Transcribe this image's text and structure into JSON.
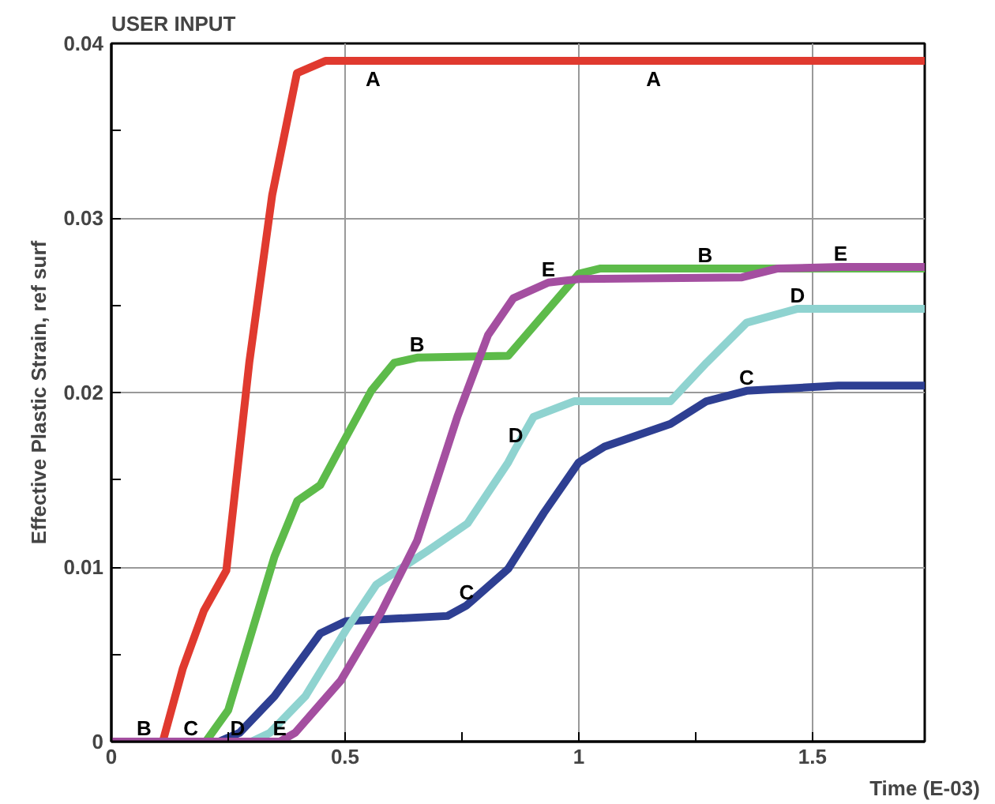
{
  "chart_data": {
    "type": "line",
    "title": "USER INPUT",
    "xlabel": "Time (E-03)",
    "ylabel": "Effective Plastic Strain, ref surf",
    "xlim": [
      0,
      1.74
    ],
    "ylim": [
      0,
      0.04
    ],
    "xticks": [
      0,
      {
        "value": 0.25,
        "label": null
      },
      0.5,
      {
        "value": 0.75,
        "label": null
      },
      1,
      {
        "value": 1.25,
        "label": null
      },
      1.5
    ],
    "yticks": [
      0,
      {
        "value": 0.005,
        "label": null
      },
      0.01,
      {
        "value": 0.015,
        "label": null
      },
      0.02,
      {
        "value": 0.025,
        "label": null
      },
      0.03,
      {
        "value": 0.035,
        "label": null
      },
      0.04
    ],
    "grid": true,
    "line_style": "solid",
    "series": [
      {
        "name": "A",
        "color": "#e03a2f",
        "x": [
          0,
          0.045,
          0.11,
          0.153,
          0.198,
          0.246,
          0.295,
          0.344,
          0.397,
          0.458,
          0.56,
          1.16,
          1.74
        ],
        "values": [
          0,
          0,
          0,
          0.0042,
          0.0075,
          0.0098,
          0.0217,
          0.0313,
          0.0383,
          0.039,
          0.039,
          0.039,
          0.039
        ]
      },
      {
        "name": "B",
        "color": "#5dbb4a",
        "x": [
          0,
          0.07,
          0.202,
          0.25,
          0.295,
          0.349,
          0.398,
          0.447,
          0.491,
          0.556,
          0.605,
          0.654,
          0.849,
          1.0,
          1.045,
          1.27,
          1.74
        ],
        "values": [
          0,
          0,
          0,
          0.0018,
          0.0058,
          0.0106,
          0.0138,
          0.0147,
          0.0169,
          0.0201,
          0.0217,
          0.022,
          0.0221,
          0.0268,
          0.0271,
          0.0271,
          0.0271
        ]
      },
      {
        "name": "C",
        "color": "#2e3f92",
        "x": [
          0,
          0.17,
          0.23,
          0.274,
          0.349,
          0.447,
          0.502,
          0.719,
          0.76,
          0.849,
          0.925,
          1.0,
          1.055,
          1.196,
          1.273,
          1.359,
          1.555,
          1.74
        ],
        "values": [
          0,
          0,
          0,
          0.0005,
          0.0026,
          0.0062,
          0.0069,
          0.0072,
          0.0078,
          0.0099,
          0.0131,
          0.016,
          0.0169,
          0.0182,
          0.0195,
          0.0201,
          0.0204,
          0.0204
        ]
      },
      {
        "name": "D",
        "color": "#8fd3d0",
        "x": [
          0,
          0.27,
          0.3,
          0.339,
          0.415,
          0.502,
          0.567,
          0.675,
          0.762,
          0.849,
          0.865,
          0.903,
          0.99,
          1.196,
          1.273,
          1.359,
          1.468,
          1.74
        ],
        "values": [
          0,
          0,
          0,
          0.0005,
          0.0026,
          0.0064,
          0.009,
          0.0109,
          0.0125,
          0.016,
          0.0168,
          0.0186,
          0.0195,
          0.0195,
          0.0217,
          0.024,
          0.0248,
          0.0248
        ]
      },
      {
        "name": "E",
        "color": "#a44fa0",
        "x": [
          0,
          0.36,
          0.393,
          0.491,
          0.577,
          0.654,
          0.74,
          0.806,
          0.86,
          0.935,
          1.0,
          1.349,
          1.424,
          1.56,
          1.74
        ],
        "values": [
          0,
          0,
          0.0005,
          0.0035,
          0.0074,
          0.0115,
          0.0186,
          0.0233,
          0.0254,
          0.0263,
          0.0265,
          0.0266,
          0.0271,
          0.0272,
          0.0272
        ]
      }
    ]
  }
}
